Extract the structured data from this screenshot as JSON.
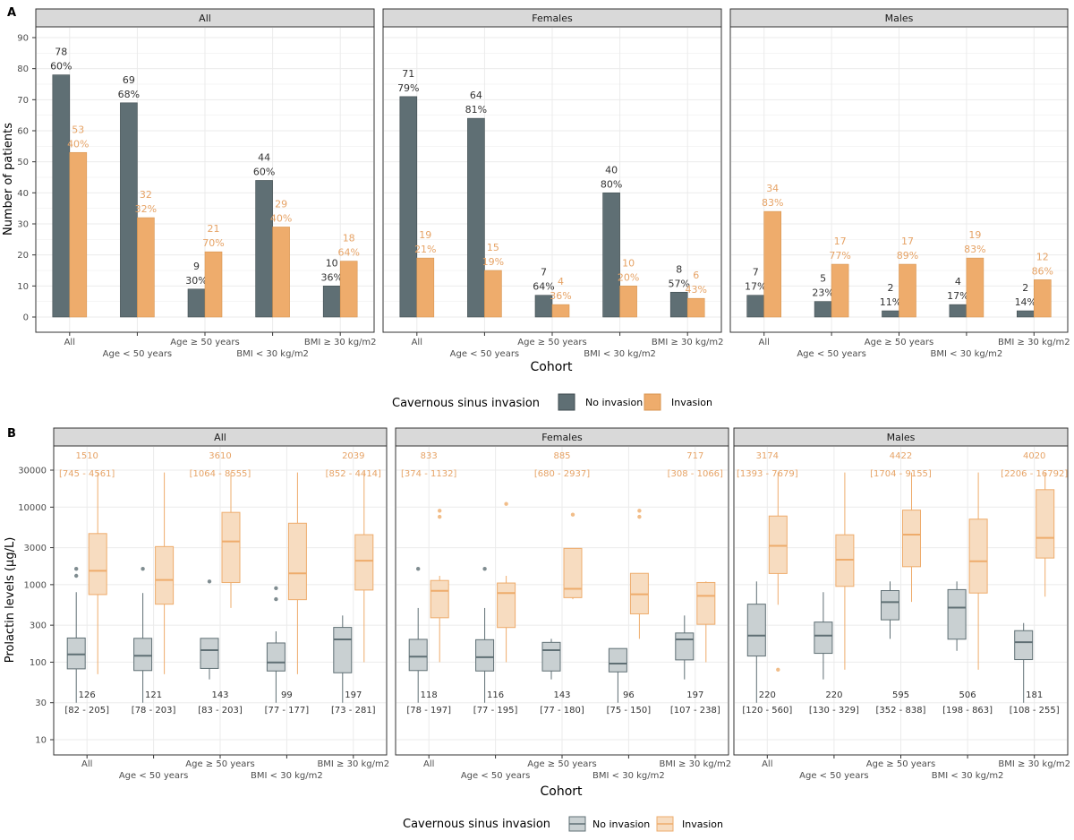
{
  "colors": {
    "no_invasion": "#5f6f74",
    "invasion": "#eeac6c",
    "no_invasion_box_fill": "#c9d0d2",
    "invasion_box_fill": "#f7dcc0",
    "strip_bg": "#d9d9d9",
    "grid": "#ebebeb",
    "axis_text": "#4d4d4d"
  },
  "chart_data": [
    {
      "type": "bar",
      "panel_letter": "A",
      "ylabel": "Number of patients",
      "xlabel": "Cohort",
      "ylim": [
        0,
        90
      ],
      "y_ticks": [
        0,
        10,
        20,
        30,
        40,
        50,
        60,
        70,
        80,
        90
      ],
      "grid": true,
      "facets": [
        "All",
        "Females",
        "Males"
      ],
      "categories_upper": [
        "All",
        "",
        "Age ≥ 50 years",
        "",
        "BMI ≥ 30 kg/m2"
      ],
      "categories_lower": [
        "",
        "Age < 50 years",
        "",
        "BMI < 30 kg/m2",
        ""
      ],
      "legend": {
        "title": "Cavernous sinus invasion",
        "items": [
          "No invasion",
          "Invasion"
        ],
        "position": "bottom"
      },
      "panels": [
        {
          "facet": "All",
          "series": [
            {
              "name": "No invasion",
              "values": [
                78,
                69,
                9,
                44,
                10
              ],
              "labels": [
                "60%",
                "68%",
                "30%",
                "60%",
                "36%"
              ]
            },
            {
              "name": "Invasion",
              "values": [
                53,
                32,
                21,
                29,
                18
              ],
              "labels": [
                "40%",
                "32%",
                "70%",
                "40%",
                "64%"
              ]
            }
          ]
        },
        {
          "facet": "Females",
          "series": [
            {
              "name": "No invasion",
              "values": [
                71,
                64,
                7,
                40,
                8
              ],
              "labels": [
                "79%",
                "81%",
                "64%",
                "80%",
                "57%"
              ]
            },
            {
              "name": "Invasion",
              "values": [
                19,
                15,
                4,
                10,
                6
              ],
              "labels": [
                "21%",
                "19%",
                "36%",
                "20%",
                "43%"
              ]
            }
          ]
        },
        {
          "facet": "Males",
          "series": [
            {
              "name": "No invasion",
              "values": [
                7,
                5,
                2,
                4,
                2
              ],
              "labels": [
                "17%",
                "23%",
                "11%",
                "17%",
                "14%"
              ]
            },
            {
              "name": "Invasion",
              "values": [
                34,
                17,
                17,
                19,
                12
              ],
              "labels": [
                "83%",
                "77%",
                "89%",
                "83%",
                "86%"
              ]
            }
          ]
        }
      ]
    },
    {
      "type": "box",
      "panel_letter": "B",
      "ylabel": "Prolactin levels (µg/L)",
      "xlabel": "Cohort",
      "y_scale": "log",
      "ylim": [
        7,
        60000
      ],
      "y_ticks": [
        10,
        30,
        100,
        300,
        1000,
        3000,
        10000,
        30000
      ],
      "grid": true,
      "facets": [
        "All",
        "Females",
        "Males"
      ],
      "categories_upper": [
        "All",
        "",
        "Age ≥ 50 years",
        "",
        "BMI ≥ 30 kg/m2"
      ],
      "categories_lower": [
        "",
        "Age < 50 years",
        "",
        "BMI < 30 kg/m2",
        ""
      ],
      "legend": {
        "title": "Cavernous sinus invasion",
        "items": [
          "No invasion",
          "Invasion"
        ],
        "position": "bottom"
      },
      "panels": [
        {
          "facet": "All",
          "no_invasion": [
            {
              "median": 126,
              "q1": 82,
              "q3": 205,
              "whisker_low": 30,
              "whisker_high": 800,
              "outliers": [
                1300,
                1600
              ],
              "label_median": "126",
              "label_iqr": "[82 - 205]"
            },
            {
              "median": 121,
              "q1": 78,
              "q3": 203,
              "whisker_low": 30,
              "whisker_high": 780,
              "outliers": [
                1600
              ],
              "label_median": "121",
              "label_iqr": "[78 - 203]"
            },
            {
              "median": 143,
              "q1": 83,
              "q3": 203,
              "whisker_low": 60,
              "whisker_high": 203,
              "outliers": [
                1100
              ],
              "label_median": "143",
              "label_iqr": "[83 - 203]"
            },
            {
              "median": 99,
              "q1": 77,
              "q3": 177,
              "whisker_low": 30,
              "whisker_high": 250,
              "outliers": [
                650,
                900
              ],
              "label_median": "99",
              "label_iqr": "[77 - 177]"
            },
            {
              "median": 197,
              "q1": 73,
              "q3": 281,
              "whisker_low": 30,
              "whisker_high": 400,
              "outliers": [],
              "label_median": "197",
              "label_iqr": "[73 - 281]"
            }
          ],
          "invasion": [
            {
              "median": 1510,
              "q1": 745,
              "q3": 4561,
              "whisker_low": 70,
              "whisker_high": 28000,
              "outliers": [],
              "label_median": "1510",
              "label_iqr": "[745 - 4561]"
            },
            {
              "median": 1150,
              "q1": 560,
              "q3": 3100,
              "whisker_low": 70,
              "whisker_high": 28000,
              "outliers": [],
              "label_median": "",
              "label_iqr": ""
            },
            {
              "median": 3610,
              "q1": 1064,
              "q3": 8555,
              "whisker_low": 500,
              "whisker_high": 28000,
              "outliers": [],
              "label_median": "3610",
              "label_iqr": "[1064 - 8555]"
            },
            {
              "median": 1400,
              "q1": 640,
              "q3": 6200,
              "whisker_low": 70,
              "whisker_high": 28000,
              "outliers": [],
              "label_median": "",
              "label_iqr": ""
            },
            {
              "median": 2039,
              "q1": 852,
              "q3": 4414,
              "whisker_low": 100,
              "whisker_high": 28000,
              "outliers": [],
              "label_median": "2039",
              "label_iqr": "[852 - 4414]"
            }
          ]
        },
        {
          "facet": "Females",
          "no_invasion": [
            {
              "median": 118,
              "q1": 78,
              "q3": 197,
              "whisker_low": 30,
              "whisker_high": 500,
              "outliers": [
                1600
              ],
              "label_median": "118",
              "label_iqr": "[78 - 197]"
            },
            {
              "median": 116,
              "q1": 77,
              "q3": 195,
              "whisker_low": 30,
              "whisker_high": 500,
              "outliers": [
                1600
              ],
              "label_median": "116",
              "label_iqr": "[77 - 195]"
            },
            {
              "median": 143,
              "q1": 77,
              "q3": 180,
              "whisker_low": 60,
              "whisker_high": 200,
              "outliers": [],
              "label_median": "143",
              "label_iqr": "[77 - 180]"
            },
            {
              "median": 96,
              "q1": 75,
              "q3": 150,
              "whisker_low": 30,
              "whisker_high": 150,
              "outliers": [],
              "label_median": "96",
              "label_iqr": "[75 - 150]"
            },
            {
              "median": 197,
              "q1": 107,
              "q3": 238,
              "whisker_low": 60,
              "whisker_high": 400,
              "outliers": [],
              "label_median": "197",
              "label_iqr": "[107 - 238]"
            }
          ],
          "invasion": [
            {
              "median": 833,
              "q1": 374,
              "q3": 1132,
              "whisker_low": 100,
              "whisker_high": 1300,
              "outliers": [
                7500,
                9000
              ],
              "label_median": "833",
              "label_iqr": "[374 - 1132]"
            },
            {
              "median": 780,
              "q1": 280,
              "q3": 1050,
              "whisker_low": 100,
              "whisker_high": 1300,
              "outliers": [
                11000
              ],
              "label_median": "",
              "label_iqr": ""
            },
            {
              "median": 885,
              "q1": 680,
              "q3": 2937,
              "whisker_low": 650,
              "whisker_high": 2937,
              "outliers": [
                8000
              ],
              "label_median": "885",
              "label_iqr": "[680 - 2937]"
            },
            {
              "median": 750,
              "q1": 420,
              "q3": 1400,
              "whisker_low": 200,
              "whisker_high": 1400,
              "outliers": [
                7500,
                9000
              ],
              "label_median": "",
              "label_iqr": ""
            },
            {
              "median": 717,
              "q1": 308,
              "q3": 1066,
              "whisker_low": 100,
              "whisker_high": 1100,
              "outliers": [],
              "label_median": "717",
              "label_iqr": "[308 - 1066]"
            }
          ]
        },
        {
          "facet": "Males",
          "no_invasion": [
            {
              "median": 220,
              "q1": 120,
              "q3": 560,
              "whisker_low": 30,
              "whisker_high": 1100,
              "outliers": [],
              "label_median": "220",
              "label_iqr": "[120 - 560]"
            },
            {
              "median": 220,
              "q1": 130,
              "q3": 329,
              "whisker_low": 60,
              "whisker_high": 800,
              "outliers": [],
              "label_median": "220",
              "label_iqr": "[130 - 329]"
            },
            {
              "median": 595,
              "q1": 352,
              "q3": 838,
              "whisker_low": 200,
              "whisker_high": 1100,
              "outliers": [],
              "label_median": "595",
              "label_iqr": "[352 - 838]"
            },
            {
              "median": 506,
              "q1": 198,
              "q3": 863,
              "whisker_low": 140,
              "whisker_high": 1100,
              "outliers": [],
              "label_median": "506",
              "label_iqr": "[198 - 863]"
            },
            {
              "median": 181,
              "q1": 108,
              "q3": 255,
              "whisker_low": 30,
              "whisker_high": 320,
              "outliers": [],
              "label_median": "181",
              "label_iqr": "[108 - 255]"
            }
          ],
          "invasion": [
            {
              "median": 3174,
              "q1": 1393,
              "q3": 7679,
              "whisker_low": 550,
              "whisker_high": 28000,
              "outliers": [
                80
              ],
              "label_median": "3174",
              "label_iqr": "[1393 - 7679]"
            },
            {
              "median": 2100,
              "q1": 950,
              "q3": 4400,
              "whisker_low": 80,
              "whisker_high": 28000,
              "outliers": [],
              "label_median": "",
              "label_iqr": ""
            },
            {
              "median": 4422,
              "q1": 1704,
              "q3": 9155,
              "whisker_low": 600,
              "whisker_high": 28000,
              "outliers": [],
              "label_median": "4422",
              "label_iqr": "[1704 - 9155]"
            },
            {
              "median": 2000,
              "q1": 780,
              "q3": 7000,
              "whisker_low": 80,
              "whisker_high": 28000,
              "outliers": [],
              "label_median": "",
              "label_iqr": ""
            },
            {
              "median": 4020,
              "q1": 2206,
              "q3": 16792,
              "whisker_low": 700,
              "whisker_high": 28000,
              "outliers": [],
              "label_median": "4020",
              "label_iqr": "[2206 - 16792]"
            }
          ]
        }
      ]
    }
  ]
}
